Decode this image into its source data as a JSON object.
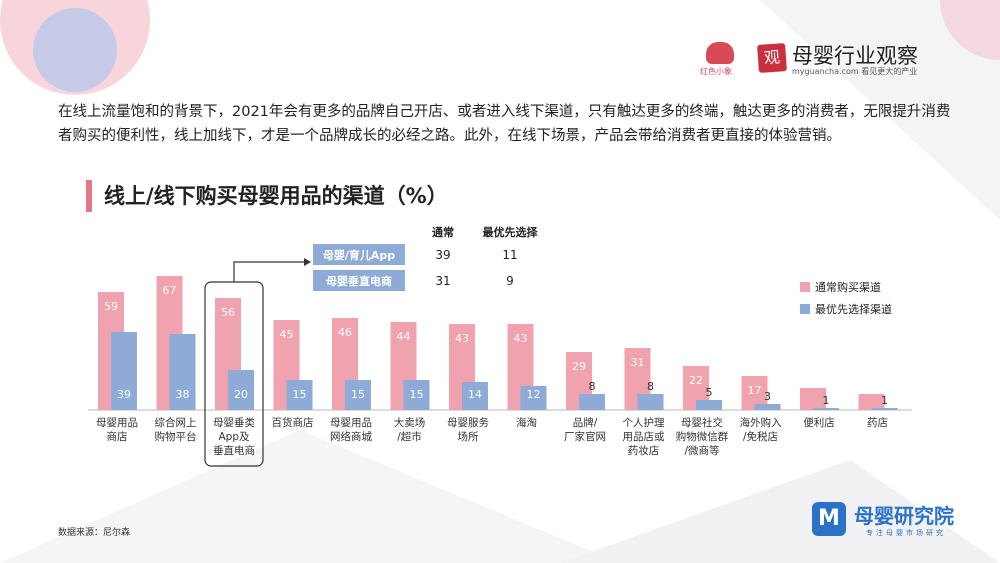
{
  "header": {
    "logo_left_text": "红色小象",
    "seal_char": "观",
    "brand_title": "母婴行业观察",
    "brand_sub": "myguancha.com 看见更大的产业"
  },
  "intro_text": "在线上流量饱和的背景下，2021年会有更多的品牌自己开店、或者进入线下渠道，只有触达更多的终端，触达更多的消费者，无限提升消费者购买的便利性，线上加线下，才是一个品牌成长的必经之路。此外，在线下场景，产品会带给消费者更直接的体验营销。",
  "chart_title": "线上/线下购买母婴用品的渠道（%）",
  "source": "数据来源：尼尔森",
  "footer": {
    "icon_char": "M",
    "title": "母婴研究院",
    "sub": "专注母婴市场研究"
  },
  "colors": {
    "series1": "#f0a2ae",
    "series2": "#8eaad6",
    "value_label1": "#ffffff",
    "value_label2": "#ffffff",
    "title_accent": "#e3788a",
    "legend_box": "#8eaad6",
    "callout_box": "#2f4b7c"
  },
  "chart_data": {
    "type": "bar",
    "title": "线上/线下购买母婴用品的渠道（%）",
    "categories": [
      "母婴用品\n商店",
      "综合网上\n购物平台",
      "母婴垂类\nApp及\n垂直电商",
      "百货商店",
      "母婴用品\n网络商城",
      "大卖场\n/超市",
      "母婴服务\n场所",
      "海淘",
      "品牌/\n厂家官网",
      "个人护理\n用品店或\n药妆店",
      "母婴社交\n购物微信群\n/微商等",
      "海外购入\n/免税店",
      "便利店",
      "药店"
    ],
    "series": [
      {
        "name": "通常购买渠道",
        "values": [
          59,
          67,
          56,
          45,
          46,
          44,
          43,
          43,
          29,
          31,
          22,
          17,
          11,
          8
        ]
      },
      {
        "name": "最优先选择渠道",
        "values": [
          39,
          38,
          20,
          15,
          15,
          15,
          14,
          12,
          8,
          8,
          5,
          3,
          1,
          1
        ]
      }
    ],
    "legend_placement": "right",
    "grid": false,
    "callout": {
      "headers": [
        "通常",
        "最优先选择"
      ],
      "rows": [
        {
          "label": "母婴/育儿App",
          "values": [
            "39",
            "11"
          ]
        },
        {
          "label": "母婴垂直电商",
          "values": [
            "31",
            "9"
          ]
        }
      ],
      "highlight_category_index": 2
    }
  }
}
